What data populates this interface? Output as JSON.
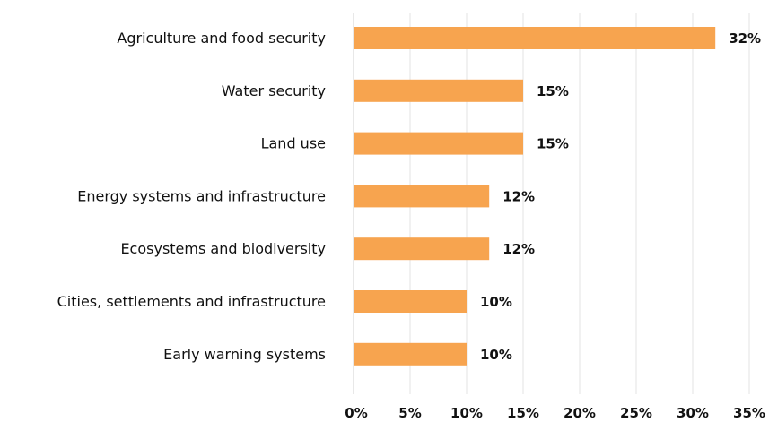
{
  "chart_data": {
    "type": "bar",
    "orientation": "horizontal",
    "categories": [
      "Agriculture and food security",
      "Water security",
      "Land use",
      "Energy systems and infrastructure",
      "Ecosystems and biodiversity",
      "Cities, settlements and infrastructure",
      "Early warning systems"
    ],
    "values": [
      32,
      15,
      15,
      12,
      12,
      10,
      10
    ],
    "data_labels": [
      "32%",
      "15%",
      "15%",
      "12%",
      "12%",
      "10%",
      "10%"
    ],
    "xlim": [
      0,
      35
    ],
    "x_ticks": [
      0,
      5,
      10,
      15,
      20,
      25,
      30,
      35
    ],
    "x_tick_labels": [
      "0%",
      "5%",
      "10%",
      "15%",
      "20%",
      "25%",
      "30%",
      "35%"
    ],
    "grid": "vertical",
    "legend": "none",
    "bar_color": "#F7A44F"
  }
}
